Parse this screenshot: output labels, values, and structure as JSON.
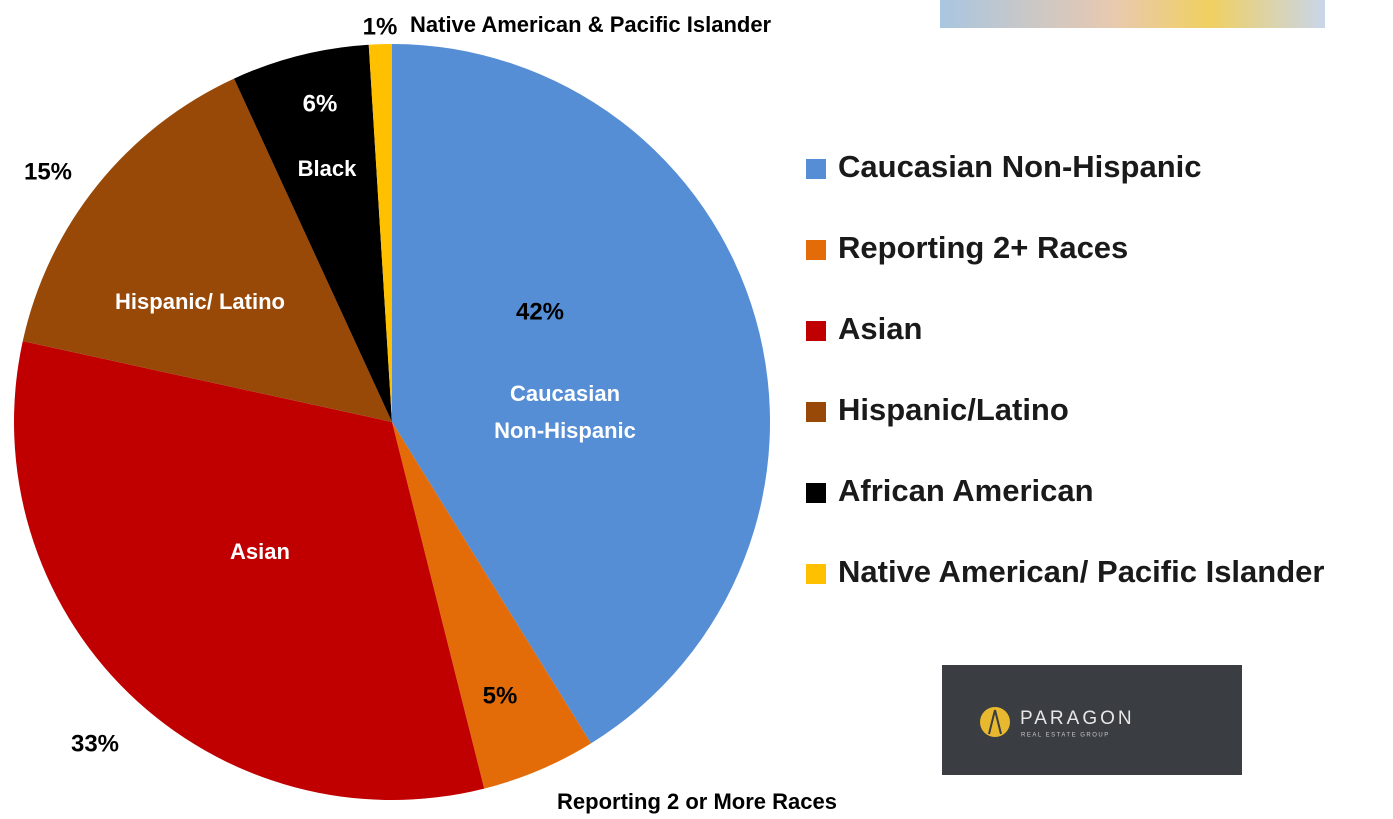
{
  "chart_data": {
    "type": "pie",
    "categories": [
      "Caucasian Non-Hispanic",
      "Reporting 2+ Races",
      "Asian",
      "Hispanic/Latino",
      "African American",
      "Native American/ Pacific Islander"
    ],
    "values": [
      42,
      5,
      33,
      15,
      6,
      1
    ],
    "value_labels": [
      "42%",
      "5%",
      "33%",
      "15%",
      "6%",
      "1%"
    ],
    "slice_labels": [
      [
        "Caucasian",
        "Non-Hispanic"
      ],
      [
        "Reporting 2 or More Races"
      ],
      [
        "Asian"
      ],
      [
        "Hispanic/ Latino"
      ],
      [
        "Black"
      ],
      [
        "Native American & Pacific Islander"
      ]
    ],
    "colors": [
      "#558ed5",
      "#e36c09",
      "#c00000",
      "#984807",
      "#000000",
      "#ffc000"
    ],
    "legend": "right"
  },
  "logo": {
    "name": "PARAGON",
    "tagline": "REAL ESTATE GROUP"
  }
}
